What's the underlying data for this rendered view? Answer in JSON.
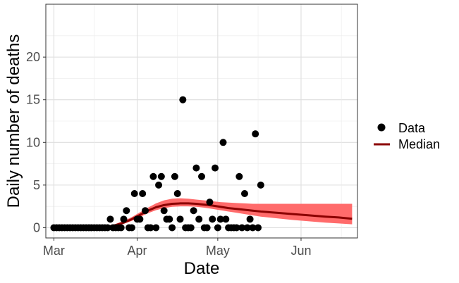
{
  "chart_data": {
    "type": "scatter",
    "title": "",
    "xlabel": "Date",
    "ylabel": "Daily number of deaths",
    "x_ticks": [
      "Mar",
      "Apr",
      "May",
      "Jun"
    ],
    "y_ticks": [
      "0",
      "5",
      "10",
      "15",
      "20"
    ],
    "xlim": [
      "2020-02-27",
      "2020-06-22"
    ],
    "ylim": [
      -1.2,
      26.2
    ],
    "grid": true,
    "legend_position": "right",
    "legend": [
      {
        "key": "data",
        "label": "Data",
        "symbol": "point",
        "color": "#000000"
      },
      {
        "key": "median",
        "label": "Median",
        "symbol": "line",
        "color": "#8b0000"
      }
    ],
    "colors": {
      "points": "#000000",
      "median": "#8b0000",
      "band": "#ff6b6b"
    },
    "series": [
      {
        "name": "Data",
        "kind": "points",
        "points": [
          [
            "2020-03-01",
            0
          ],
          [
            "2020-03-02",
            0
          ],
          [
            "2020-03-03",
            0
          ],
          [
            "2020-03-04",
            0
          ],
          [
            "2020-03-05",
            0
          ],
          [
            "2020-03-06",
            0
          ],
          [
            "2020-03-07",
            0
          ],
          [
            "2020-03-08",
            0
          ],
          [
            "2020-03-09",
            0
          ],
          [
            "2020-03-10",
            0
          ],
          [
            "2020-03-11",
            0
          ],
          [
            "2020-03-12",
            0
          ],
          [
            "2020-03-13",
            0
          ],
          [
            "2020-03-14",
            0
          ],
          [
            "2020-03-15",
            0
          ],
          [
            "2020-03-16",
            0
          ],
          [
            "2020-03-17",
            0
          ],
          [
            "2020-03-18",
            0
          ],
          [
            "2020-03-19",
            0
          ],
          [
            "2020-03-20",
            0
          ],
          [
            "2020-03-21",
            0
          ],
          [
            "2020-03-22",
            1
          ],
          [
            "2020-03-23",
            0
          ],
          [
            "2020-03-24",
            0
          ],
          [
            "2020-03-25",
            0
          ],
          [
            "2020-03-26",
            0
          ],
          [
            "2020-03-27",
            1
          ],
          [
            "2020-03-28",
            2
          ],
          [
            "2020-03-29",
            0
          ],
          [
            "2020-03-30",
            0
          ],
          [
            "2020-03-31",
            4
          ],
          [
            "2020-04-01",
            1
          ],
          [
            "2020-04-02",
            1
          ],
          [
            "2020-04-03",
            4
          ],
          [
            "2020-04-04",
            2
          ],
          [
            "2020-04-05",
            0
          ],
          [
            "2020-04-06",
            0
          ],
          [
            "2020-04-07",
            6
          ],
          [
            "2020-04-08",
            0
          ],
          [
            "2020-04-09",
            5
          ],
          [
            "2020-04-10",
            6
          ],
          [
            "2020-04-11",
            2
          ],
          [
            "2020-04-12",
            1
          ],
          [
            "2020-04-13",
            1
          ],
          [
            "2020-04-14",
            0
          ],
          [
            "2020-04-15",
            6
          ],
          [
            "2020-04-16",
            4
          ],
          [
            "2020-04-17",
            1
          ],
          [
            "2020-04-18",
            15
          ],
          [
            "2020-04-19",
            0
          ],
          [
            "2020-04-20",
            0
          ],
          [
            "2020-04-21",
            0
          ],
          [
            "2020-04-22",
            2
          ],
          [
            "2020-04-23",
            7
          ],
          [
            "2020-04-24",
            1
          ],
          [
            "2020-04-25",
            6
          ],
          [
            "2020-04-26",
            0
          ],
          [
            "2020-04-27",
            0
          ],
          [
            "2020-04-28",
            3
          ],
          [
            "2020-04-29",
            1
          ],
          [
            "2020-04-30",
            7
          ],
          [
            "2020-05-01",
            0
          ],
          [
            "2020-05-02",
            1
          ],
          [
            "2020-05-03",
            10
          ],
          [
            "2020-05-04",
            1
          ],
          [
            "2020-05-05",
            0
          ],
          [
            "2020-05-06",
            0
          ],
          [
            "2020-05-07",
            0
          ],
          [
            "2020-05-08",
            0
          ],
          [
            "2020-05-09",
            6
          ],
          [
            "2020-05-10",
            0
          ],
          [
            "2020-05-11",
            4
          ],
          [
            "2020-05-12",
            0
          ],
          [
            "2020-05-13",
            1
          ],
          [
            "2020-05-14",
            0
          ],
          [
            "2020-05-15",
            11
          ],
          [
            "2020-05-16",
            0
          ],
          [
            "2020-05-17",
            5
          ]
        ]
      },
      {
        "name": "Median",
        "kind": "line",
        "points": [
          [
            "2020-03-18",
            0.0
          ],
          [
            "2020-03-21",
            0.1
          ],
          [
            "2020-03-24",
            0.3
          ],
          [
            "2020-03-27",
            0.6
          ],
          [
            "2020-03-30",
            1.0
          ],
          [
            "2020-04-02",
            1.5
          ],
          [
            "2020-04-05",
            2.0
          ],
          [
            "2020-04-08",
            2.4
          ],
          [
            "2020-04-11",
            2.65
          ],
          [
            "2020-04-14",
            2.8
          ],
          [
            "2020-04-17",
            2.85
          ],
          [
            "2020-04-20",
            2.85
          ],
          [
            "2020-04-23",
            2.8
          ],
          [
            "2020-04-26",
            2.7
          ],
          [
            "2020-04-29",
            2.6
          ],
          [
            "2020-05-02",
            2.45
          ],
          [
            "2020-05-05",
            2.3
          ],
          [
            "2020-05-08",
            2.2
          ],
          [
            "2020-05-11",
            2.1
          ],
          [
            "2020-05-14",
            2.0
          ],
          [
            "2020-05-17",
            1.9
          ],
          [
            "2020-05-23",
            1.75
          ],
          [
            "2020-05-29",
            1.6
          ],
          [
            "2020-06-04",
            1.45
          ],
          [
            "2020-06-10",
            1.3
          ],
          [
            "2020-06-15",
            1.2
          ],
          [
            "2020-06-20",
            1.05
          ]
        ]
      },
      {
        "name": "",
        "kind": "band",
        "lower": [
          [
            "2020-03-18",
            0.0
          ],
          [
            "2020-03-21",
            0.05
          ],
          [
            "2020-03-24",
            0.2
          ],
          [
            "2020-03-27",
            0.45
          ],
          [
            "2020-03-30",
            0.8
          ],
          [
            "2020-04-02",
            1.25
          ],
          [
            "2020-04-05",
            1.7
          ],
          [
            "2020-04-08",
            2.05
          ],
          [
            "2020-04-11",
            2.3
          ],
          [
            "2020-04-14",
            2.45
          ],
          [
            "2020-04-17",
            2.5
          ],
          [
            "2020-04-20",
            2.5
          ],
          [
            "2020-04-23",
            2.45
          ],
          [
            "2020-04-26",
            2.35
          ],
          [
            "2020-04-29",
            2.2
          ],
          [
            "2020-05-02",
            2.05
          ],
          [
            "2020-05-05",
            1.9
          ],
          [
            "2020-05-08",
            1.75
          ],
          [
            "2020-05-11",
            1.6
          ],
          [
            "2020-05-14",
            1.45
          ],
          [
            "2020-05-17",
            1.3
          ],
          [
            "2020-05-23",
            1.1
          ],
          [
            "2020-05-29",
            0.9
          ],
          [
            "2020-06-04",
            0.75
          ],
          [
            "2020-06-10",
            0.6
          ],
          [
            "2020-06-15",
            0.5
          ],
          [
            "2020-06-20",
            0.4
          ]
        ],
        "upper": [
          [
            "2020-03-18",
            0.1
          ],
          [
            "2020-03-21",
            0.2
          ],
          [
            "2020-03-24",
            0.45
          ],
          [
            "2020-03-27",
            0.8
          ],
          [
            "2020-03-30",
            1.25
          ],
          [
            "2020-04-02",
            1.8
          ],
          [
            "2020-04-05",
            2.35
          ],
          [
            "2020-04-08",
            2.85
          ],
          [
            "2020-04-11",
            3.2
          ],
          [
            "2020-04-14",
            3.4
          ],
          [
            "2020-04-17",
            3.45
          ],
          [
            "2020-04-20",
            3.4
          ],
          [
            "2020-04-23",
            3.3
          ],
          [
            "2020-04-26",
            3.2
          ],
          [
            "2020-04-29",
            3.1
          ],
          [
            "2020-05-02",
            3.0
          ],
          [
            "2020-05-05",
            2.95
          ],
          [
            "2020-05-08",
            2.9
          ],
          [
            "2020-05-11",
            2.85
          ],
          [
            "2020-05-14",
            2.8
          ],
          [
            "2020-05-17",
            2.8
          ],
          [
            "2020-05-23",
            2.8
          ],
          [
            "2020-05-29",
            2.8
          ],
          [
            "2020-06-04",
            2.8
          ],
          [
            "2020-06-10",
            2.8
          ],
          [
            "2020-06-15",
            2.8
          ],
          [
            "2020-06-20",
            2.8
          ]
        ]
      }
    ]
  }
}
